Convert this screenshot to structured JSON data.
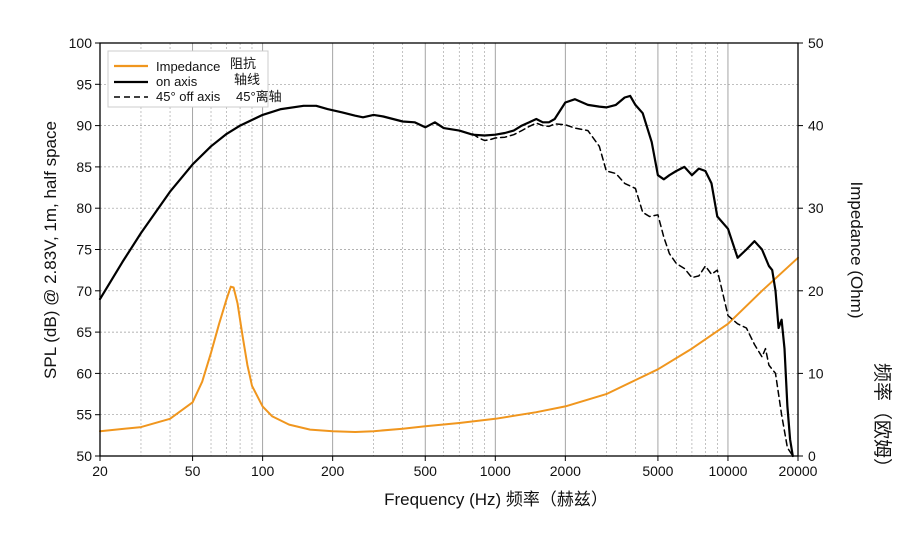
{
  "chart_data": {
    "type": "line",
    "xscale": "log",
    "xlim": [
      20,
      20000
    ],
    "ylim_left": [
      50,
      100
    ],
    "ylim_right": [
      0,
      50
    ],
    "grid": true,
    "legend_placement": "top-left",
    "xlabel": "Frequency (Hz) 频率（赫兹）",
    "ylabel_left": "SPL (dB) @ 2.83V, 1m, half space",
    "ylabel_right_en": "Impedance (Ohm)",
    "ylabel_right_zh": "频率（欧姆）",
    "x_ticks": [
      20,
      50,
      100,
      200,
      500,
      1000,
      2000,
      5000,
      10000,
      20000
    ],
    "x_tick_labels": [
      "20",
      "50",
      "100",
      "200",
      "500",
      "1000",
      "2000",
      "5000",
      "10000",
      "20000"
    ],
    "y_left_ticks": [
      50,
      55,
      60,
      65,
      70,
      75,
      80,
      85,
      90,
      95,
      100
    ],
    "y_left_tick_labels": [
      "50",
      "55",
      "60",
      "65",
      "70",
      "75",
      "80",
      "85",
      "90",
      "95",
      "100"
    ],
    "y_right_ticks": [
      0,
      10,
      20,
      30,
      40,
      50
    ],
    "y_right_tick_labels": [
      "0",
      "10",
      "20",
      "30",
      "40",
      "50"
    ],
    "series": [
      {
        "name": "Impedance",
        "name_zh": "阻抗",
        "axis": "right",
        "color": "#f0961e",
        "style": "solid",
        "x": [
          20,
          30,
          40,
          50,
          55,
          60,
          65,
          70,
          73,
          75,
          78,
          82,
          86,
          90,
          100,
          110,
          130,
          160,
          200,
          250,
          300,
          400,
          500,
          700,
          1000,
          1500,
          2000,
          3000,
          5000,
          7000,
          10000,
          14000,
          20000
        ],
        "y": [
          3.0,
          3.5,
          4.5,
          6.5,
          9.0,
          12.5,
          16.0,
          19.0,
          20.5,
          20.4,
          18.5,
          14.5,
          11.0,
          8.5,
          6.0,
          4.8,
          3.8,
          3.2,
          3.0,
          2.9,
          3.0,
          3.3,
          3.6,
          4.0,
          4.5,
          5.3,
          6.0,
          7.5,
          10.5,
          13.0,
          16.0,
          20.0,
          24.0
        ]
      },
      {
        "name": "on axis",
        "name_zh": "轴线",
        "axis": "left",
        "color": "#000000",
        "style": "solid",
        "x": [
          20,
          25,
          30,
          40,
          50,
          60,
          70,
          80,
          100,
          120,
          150,
          170,
          190,
          220,
          250,
          270,
          300,
          330,
          400,
          450,
          500,
          550,
          600,
          700,
          800,
          900,
          1000,
          1100,
          1200,
          1300,
          1400,
          1500,
          1600,
          1700,
          1800,
          2000,
          2200,
          2500,
          2800,
          3000,
          3300,
          3600,
          3800,
          4000,
          4300,
          4700,
          5000,
          5300,
          5600,
          6000,
          6500,
          7000,
          7500,
          8000,
          8500,
          9000,
          10000,
          11000,
          12000,
          13000,
          14000,
          15000,
          15500,
          16000,
          16500,
          17000,
          17500,
          18000,
          18500,
          19000
        ],
        "y": [
          69.0,
          73.5,
          77.0,
          82.0,
          85.3,
          87.5,
          89.0,
          90.0,
          91.3,
          92.0,
          92.4,
          92.4,
          92.0,
          91.6,
          91.2,
          91.0,
          91.3,
          91.1,
          90.5,
          90.4,
          89.8,
          90.4,
          89.7,
          89.4,
          88.9,
          88.8,
          88.9,
          89.1,
          89.4,
          90.0,
          90.4,
          90.8,
          90.4,
          90.4,
          90.8,
          92.8,
          93.2,
          92.5,
          92.3,
          92.2,
          92.5,
          93.4,
          93.6,
          92.5,
          91.5,
          88.0,
          84.0,
          83.5,
          84.0,
          84.5,
          85.0,
          84.0,
          84.8,
          84.5,
          83.0,
          79.0,
          77.5,
          74.0,
          75.0,
          76.0,
          75.0,
          73.0,
          72.5,
          70.0,
          65.5,
          66.5,
          63.0,
          56.0,
          52.0,
          50.0
        ]
      },
      {
        "name": "45° off axis",
        "name_zh": "45°离轴",
        "axis": "left",
        "color": "#000000",
        "style": "dashed",
        "x": [
          800,
          850,
          900,
          950,
          1000,
          1100,
          1200,
          1300,
          1400,
          1500,
          1600,
          1700,
          1800,
          2000,
          2200,
          2500,
          2800,
          3000,
          3300,
          3600,
          4000,
          4300,
          4600,
          5000,
          5300,
          5600,
          6000,
          6500,
          7000,
          7500,
          8000,
          8500,
          9000,
          10000,
          11000,
          12000,
          13000,
          14000,
          14500,
          15000,
          15500,
          16000,
          17000,
          18000,
          19000
        ],
        "y": [
          89.0,
          88.5,
          88.2,
          88.3,
          88.5,
          88.6,
          88.9,
          89.4,
          89.9,
          90.3,
          90.0,
          89.9,
          90.2,
          90.1,
          89.7,
          89.4,
          87.5,
          84.5,
          84.2,
          83.0,
          82.4,
          79.5,
          79.0,
          79.2,
          76.5,
          74.5,
          73.3,
          72.7,
          71.6,
          71.8,
          73.0,
          72.0,
          72.5,
          67.0,
          66.0,
          65.5,
          63.5,
          62.0,
          63.0,
          61.0,
          60.5,
          60.0,
          55.0,
          51.0,
          50.0
        ]
      }
    ],
    "colors": {
      "grid": "#9a9a9a",
      "axis": "#000000",
      "background": "#ffffff"
    }
  }
}
